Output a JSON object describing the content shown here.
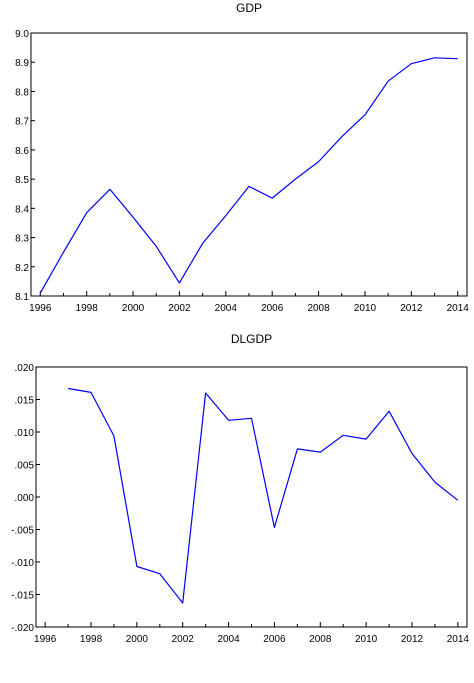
{
  "chart_data": [
    {
      "type": "line",
      "title": "GDP",
      "xlabel": "",
      "ylabel": "",
      "xlim": [
        1995.6,
        2014.4
      ],
      "ylim": [
        8.1,
        9.0
      ],
      "x_ticks": [
        1996,
        1998,
        2000,
        2002,
        2004,
        2006,
        2008,
        2010,
        2012,
        2014
      ],
      "x_tick_labels": [
        "1996",
        "1998",
        "2000",
        "2002",
        "2004",
        "2006",
        "2008",
        "2010",
        "2012",
        "2014"
      ],
      "y_ticks": [
        8.1,
        8.2,
        8.3,
        8.4,
        8.5,
        8.6,
        8.7,
        8.8,
        8.9,
        9.0
      ],
      "y_tick_labels": [
        "8.1",
        "8.2",
        "8.3",
        "8.4",
        "8.5",
        "8.6",
        "8.7",
        "8.8",
        "8.9",
        "9.0"
      ],
      "grid": false,
      "line_color": "#0000ff",
      "series": [
        {
          "x": [
            1996,
            1997,
            1998,
            1999,
            2000,
            2001,
            2002,
            2003,
            2004,
            2005,
            2006,
            2007,
            2008,
            2009,
            2010,
            2011,
            2012,
            2013,
            2014
          ],
          "values": [
            8.11,
            8.25,
            8.385,
            8.465,
            8.37,
            8.27,
            8.145,
            8.28,
            8.375,
            8.475,
            8.435,
            8.5,
            8.56,
            8.645,
            8.72,
            8.835,
            8.895,
            8.915,
            8.912
          ]
        }
      ]
    },
    {
      "type": "line",
      "title": "DLGDP",
      "xlabel": "",
      "ylabel": "",
      "xlim": [
        1995.6,
        2014.4
      ],
      "ylim": [
        -0.02,
        0.02
      ],
      "x_ticks": [
        1996,
        1998,
        2000,
        2002,
        2004,
        2006,
        2008,
        2010,
        2012,
        2014
      ],
      "x_tick_labels": [
        "1996",
        "1998",
        "2000",
        "2002",
        "2004",
        "2006",
        "2008",
        "2010",
        "2012",
        "2014"
      ],
      "y_ticks": [
        -0.02,
        -0.015,
        -0.01,
        -0.005,
        0.0,
        0.005,
        0.01,
        0.015,
        0.02
      ],
      "y_tick_labels": [
        "-.020",
        "-.015",
        "-.010",
        "-.005",
        ".000",
        ".005",
        ".010",
        ".015",
        ".020"
      ],
      "grid": false,
      "line_color": "#0000ff",
      "series": [
        {
          "x": [
            1997,
            1998,
            1999,
            2000,
            2001,
            2002,
            2003,
            2004,
            2005,
            2006,
            2007,
            2008,
            2009,
            2010,
            2011,
            2012,
            2013,
            2014
          ],
          "values": [
            0.0167,
            0.0161,
            0.0094,
            -0.0107,
            -0.0118,
            -0.0163,
            0.016,
            0.0118,
            0.0121,
            -0.0047,
            0.0074,
            0.0069,
            0.0095,
            0.0089,
            0.0132,
            0.0067,
            0.0023,
            -0.0005
          ]
        }
      ]
    }
  ]
}
